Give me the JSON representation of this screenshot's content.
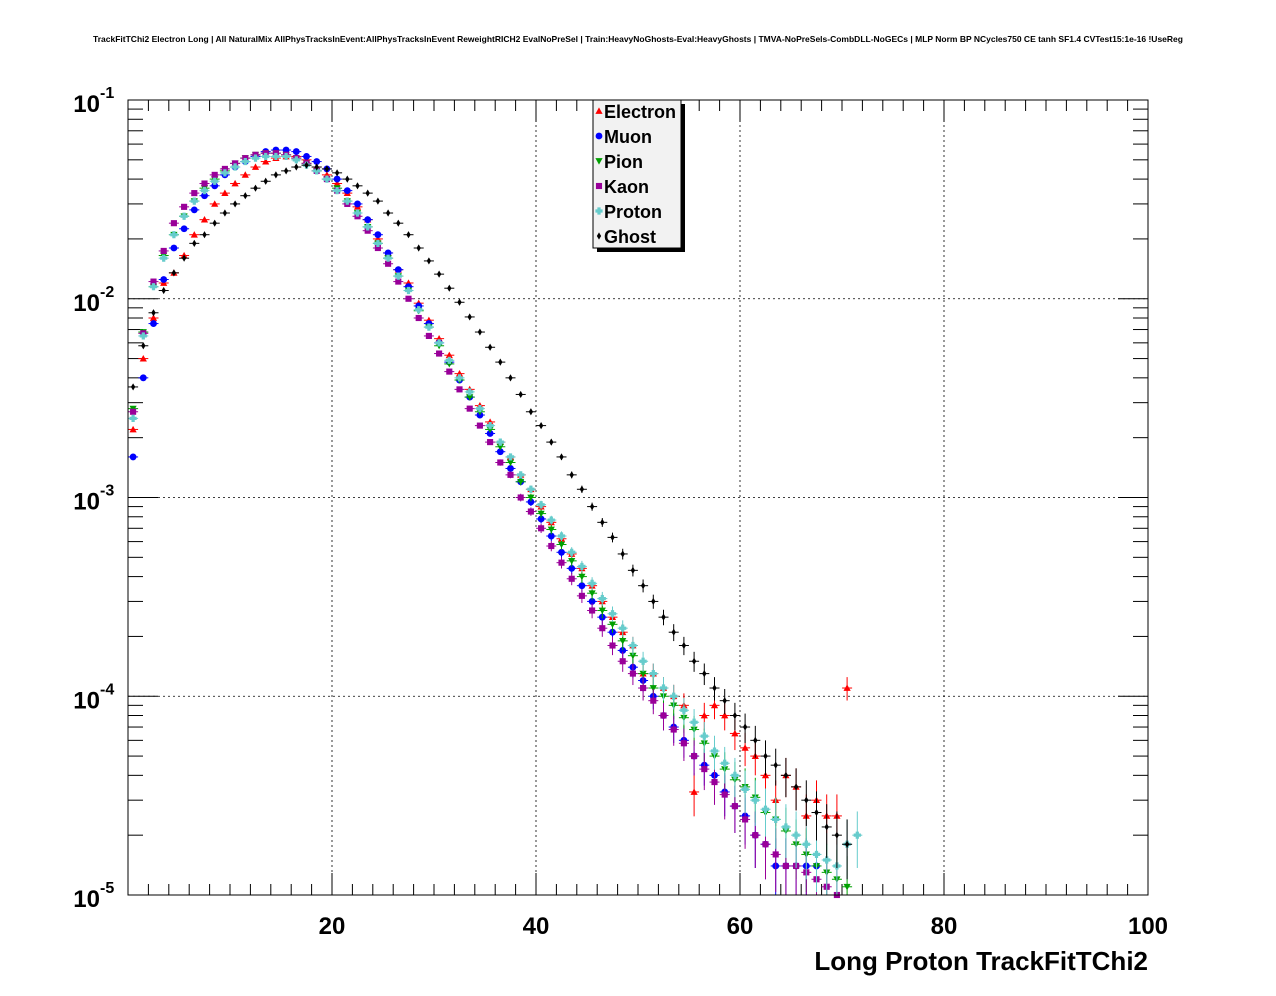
{
  "chart_data": {
    "type": "scatter",
    "title": "TrackFitTChi2 Electron Long | All NaturalMix AllPhysTracksInEvent:AllPhysTracksInEvent ReweightRICH2 EvalNoPreSel | Train:HeavyNoGhosts-Eval:HeavyGhosts | TMVA-NoPreSels-CombDLL-NoGECs | MLP Norm BP NCycles750 CE tanh SF1.4 CVTest15:1e-16 !UseReg",
    "xlabel": "Long Proton TrackFitTChi2",
    "ylabel": "",
    "xlim": [
      0,
      100
    ],
    "ylim": [
      1e-05,
      0.1
    ],
    "yscale": "log",
    "grid": true,
    "legend_position": "top-center",
    "x_ticks": [
      "20",
      "40",
      "60",
      "80",
      "100"
    ],
    "y_ticks": [
      {
        "base": "10",
        "exp": "-1"
      },
      {
        "base": "10",
        "exp": "-2"
      },
      {
        "base": "10",
        "exp": "-3"
      },
      {
        "base": "10",
        "exp": "-4"
      },
      {
        "base": "10",
        "exp": "-5"
      }
    ],
    "series": [
      {
        "name": "Electron",
        "color": "#ff0000",
        "marker": "triangle-up",
        "x": [
          0.5,
          1.5,
          2.5,
          3.5,
          4.5,
          5.5,
          6.5,
          7.5,
          8.5,
          9.5,
          10.5,
          11.5,
          12.5,
          13.5,
          14.5,
          15.5,
          16.5,
          17.5,
          18.5,
          19.5,
          20.5,
          21.5,
          22.5,
          23.5,
          24.5,
          25.5,
          26.5,
          27.5,
          28.5,
          29.5,
          30.5,
          31.5,
          32.5,
          33.5,
          34.5,
          35.5,
          36.5,
          37.5,
          38.5,
          39.5,
          40.5,
          41.5,
          42.5,
          43.5,
          44.5,
          45.5,
          46.5,
          47.5,
          48.5,
          49.5,
          50.5,
          51.5,
          52.5,
          53.5,
          54.5,
          55.5,
          56.5,
          57.5,
          58.5,
          59.5,
          60.5,
          61.5,
          62.5,
          63.5,
          64.5,
          65.5,
          66.5,
          67.5,
          68.5,
          69.5,
          70.5
        ],
        "y": [
          0.0022,
          0.005,
          0.008,
          0.012,
          0.0135,
          0.0165,
          0.021,
          0.025,
          0.03,
          0.034,
          0.038,
          0.042,
          0.046,
          0.049,
          0.051,
          0.052,
          0.052,
          0.05,
          0.046,
          0.042,
          0.038,
          0.034,
          0.029,
          0.025,
          0.02,
          0.017,
          0.014,
          0.012,
          0.0095,
          0.0078,
          0.0063,
          0.0052,
          0.0042,
          0.0035,
          0.0029,
          0.0024,
          0.0019,
          0.0016,
          0.0013,
          0.0011,
          0.0009,
          0.00075,
          0.00062,
          0.00052,
          0.00044,
          0.00036,
          0.0003,
          0.00025,
          0.00021,
          0.00018,
          0.00013,
          0.00013,
          0.00011,
          0.0001,
          9e-05,
          3.3e-05,
          8e-05,
          9e-05,
          8e-05,
          6.5e-05,
          5.5e-05,
          5e-05,
          4e-05,
          3e-05,
          4e-05,
          3.5e-05,
          2.5e-05,
          3e-05,
          2.5e-05,
          2.5e-05,
          0.00011
        ]
      },
      {
        "name": "Muon",
        "color": "#0000ff",
        "marker": "circle",
        "x": [
          0.5,
          1.5,
          2.5,
          3.5,
          4.5,
          5.5,
          6.5,
          7.5,
          8.5,
          9.5,
          10.5,
          11.5,
          12.5,
          13.5,
          14.5,
          15.5,
          16.5,
          17.5,
          18.5,
          19.5,
          20.5,
          21.5,
          22.5,
          23.5,
          24.5,
          25.5,
          26.5,
          27.5,
          28.5,
          29.5,
          30.5,
          31.5,
          32.5,
          33.5,
          34.5,
          35.5,
          36.5,
          37.5,
          38.5,
          39.5,
          40.5,
          41.5,
          42.5,
          43.5,
          44.5,
          45.5,
          46.5,
          47.5,
          48.5,
          49.5,
          50.5,
          51.5,
          52.5,
          53.5,
          54.5,
          55.5,
          56.5,
          57.5,
          58.5,
          59.5,
          60.5,
          61.5,
          62.5,
          63.5,
          64.5,
          65.5,
          66.5,
          67.5
        ],
        "y": [
          0.0016,
          0.004,
          0.0075,
          0.0125,
          0.018,
          0.0225,
          0.028,
          0.033,
          0.037,
          0.042,
          0.046,
          0.049,
          0.052,
          0.055,
          0.056,
          0.056,
          0.055,
          0.052,
          0.049,
          0.045,
          0.04,
          0.035,
          0.03,
          0.025,
          0.021,
          0.017,
          0.014,
          0.0115,
          0.0092,
          0.0075,
          0.006,
          0.0048,
          0.0039,
          0.0032,
          0.0026,
          0.0021,
          0.0017,
          0.0014,
          0.0012,
          0.00095,
          0.00078,
          0.00064,
          0.00053,
          0.00044,
          0.00036,
          0.0003,
          0.00025,
          0.00021,
          0.00017,
          0.00014,
          0.00012,
          0.0001,
          8e-05,
          7e-05,
          6e-05,
          5e-05,
          4.5e-05,
          4e-05,
          3.3e-05,
          2.8e-05,
          2.5e-05,
          2e-05,
          1.8e-05,
          1.4e-05,
          1.4e-05,
          1.4e-05,
          1.4e-05,
          1.4e-05
        ]
      },
      {
        "name": "Pion",
        "color": "#00a000",
        "marker": "triangle-down",
        "x": [
          0.5,
          1.5,
          2.5,
          3.5,
          4.5,
          5.5,
          6.5,
          7.5,
          8.5,
          9.5,
          10.5,
          11.5,
          12.5,
          13.5,
          14.5,
          15.5,
          16.5,
          17.5,
          18.5,
          19.5,
          20.5,
          21.5,
          22.5,
          23.5,
          24.5,
          25.5,
          26.5,
          27.5,
          28.5,
          29.5,
          30.5,
          31.5,
          32.5,
          33.5,
          34.5,
          35.5,
          36.5,
          37.5,
          38.5,
          39.5,
          40.5,
          41.5,
          42.5,
          43.5,
          44.5,
          45.5,
          46.5,
          47.5,
          48.5,
          49.5,
          50.5,
          51.5,
          52.5,
          53.5,
          54.5,
          55.5,
          56.5,
          57.5,
          58.5,
          59.5,
          60.5,
          61.5,
          62.5,
          63.5,
          64.5,
          65.5,
          66.5,
          67.5,
          68.5,
          69.5,
          70.5
        ],
        "y": [
          0.0028,
          0.0068,
          0.0115,
          0.0165,
          0.021,
          0.026,
          0.031,
          0.036,
          0.04,
          0.044,
          0.048,
          0.051,
          0.053,
          0.054,
          0.054,
          0.053,
          0.051,
          0.048,
          0.044,
          0.04,
          0.036,
          0.031,
          0.027,
          0.023,
          0.019,
          0.016,
          0.013,
          0.011,
          0.0087,
          0.0072,
          0.0058,
          0.0047,
          0.0039,
          0.0032,
          0.0027,
          0.0022,
          0.0018,
          0.0015,
          0.0012,
          0.001,
          0.00083,
          0.00069,
          0.00058,
          0.00048,
          0.0004,
          0.00033,
          0.00027,
          0.00023,
          0.00019,
          0.00016,
          0.00013,
          0.00011,
          0.0001,
          9e-05,
          7.8e-05,
          6.8e-05,
          5.8e-05,
          5e-05,
          4.3e-05,
          3.8e-05,
          3.5e-05,
          3.1e-05,
          2.6e-05,
          2.4e-05,
          2.1e-05,
          1.8e-05,
          1.6e-05,
          1.4e-05,
          1.3e-05,
          1.2e-05,
          1.1e-05
        ]
      },
      {
        "name": "Kaon",
        "color": "#990099",
        "marker": "square",
        "x": [
          0.5,
          1.5,
          2.5,
          3.5,
          4.5,
          5.5,
          6.5,
          7.5,
          8.5,
          9.5,
          10.5,
          11.5,
          12.5,
          13.5,
          14.5,
          15.5,
          16.5,
          17.5,
          18.5,
          19.5,
          20.5,
          21.5,
          22.5,
          23.5,
          24.5,
          25.5,
          26.5,
          27.5,
          28.5,
          29.5,
          30.5,
          31.5,
          32.5,
          33.5,
          34.5,
          35.5,
          36.5,
          37.5,
          38.5,
          39.5,
          40.5,
          41.5,
          42.5,
          43.5,
          44.5,
          45.5,
          46.5,
          47.5,
          48.5,
          49.5,
          50.5,
          51.5,
          52.5,
          53.5,
          54.5,
          55.5,
          56.5,
          57.5,
          58.5,
          59.5,
          60.5,
          61.5,
          62.5,
          63.5,
          64.5,
          65.5,
          66.5,
          67.5,
          68.5,
          69.5
        ],
        "y": [
          0.0027,
          0.0067,
          0.0122,
          0.0174,
          0.024,
          0.029,
          0.034,
          0.038,
          0.042,
          0.045,
          0.048,
          0.051,
          0.053,
          0.054,
          0.054,
          0.053,
          0.051,
          0.048,
          0.044,
          0.04,
          0.035,
          0.03,
          0.026,
          0.022,
          0.018,
          0.015,
          0.0122,
          0.01,
          0.008,
          0.0065,
          0.0053,
          0.0043,
          0.0035,
          0.0028,
          0.0023,
          0.0019,
          0.0015,
          0.0013,
          0.001,
          0.00085,
          0.0007,
          0.00057,
          0.00047,
          0.00039,
          0.00032,
          0.00027,
          0.00022,
          0.00018,
          0.00015,
          0.00013,
          0.00011,
          9.5e-05,
          8e-05,
          6.8e-05,
          5.8e-05,
          5e-05,
          4.3e-05,
          3.7e-05,
          3.2e-05,
          2.8e-05,
          2.4e-05,
          2e-05,
          1.8e-05,
          1.6e-05,
          1.4e-05,
          1.4e-05,
          1.3e-05,
          1.2e-05,
          1.1e-05,
          1e-05
        ]
      },
      {
        "name": "Proton",
        "color": "#66cccc",
        "marker": "cross",
        "x": [
          0.5,
          1.5,
          2.5,
          3.5,
          4.5,
          5.5,
          6.5,
          7.5,
          8.5,
          9.5,
          10.5,
          11.5,
          12.5,
          13.5,
          14.5,
          15.5,
          16.5,
          17.5,
          18.5,
          19.5,
          20.5,
          21.5,
          22.5,
          23.5,
          24.5,
          25.5,
          26.5,
          27.5,
          28.5,
          29.5,
          30.5,
          31.5,
          32.5,
          33.5,
          34.5,
          35.5,
          36.5,
          37.5,
          38.5,
          39.5,
          40.5,
          41.5,
          42.5,
          43.5,
          44.5,
          45.5,
          46.5,
          47.5,
          48.5,
          49.5,
          50.5,
          51.5,
          52.5,
          53.5,
          54.5,
          55.5,
          56.5,
          57.5,
          58.5,
          59.5,
          60.5,
          61.5,
          62.5,
          63.5,
          64.5,
          65.5,
          66.5,
          67.5,
          68.5,
          69.5,
          70.5,
          71.5
        ],
        "y": [
          0.0025,
          0.0065,
          0.0115,
          0.016,
          0.021,
          0.026,
          0.031,
          0.035,
          0.039,
          0.043,
          0.046,
          0.049,
          0.051,
          0.052,
          0.052,
          0.052,
          0.05,
          0.047,
          0.044,
          0.04,
          0.035,
          0.031,
          0.027,
          0.023,
          0.019,
          0.016,
          0.013,
          0.011,
          0.0088,
          0.0072,
          0.006,
          0.0049,
          0.004,
          0.0034,
          0.0028,
          0.0023,
          0.0019,
          0.0016,
          0.0013,
          0.0011,
          0.00092,
          0.00077,
          0.00064,
          0.00053,
          0.00045,
          0.00037,
          0.00031,
          0.00026,
          0.00022,
          0.00018,
          0.00015,
          0.00013,
          0.00011,
          0.0001,
          8.5e-05,
          7.4e-05,
          6.3e-05,
          5.3e-05,
          4.6e-05,
          4e-05,
          3.4e-05,
          3e-05,
          2.7e-05,
          2.4e-05,
          2.2e-05,
          2e-05,
          1.8e-05,
          1.6e-05,
          1.5e-05,
          1.4e-05,
          1.8e-05,
          2e-05
        ]
      },
      {
        "name": "Ghost",
        "color": "#000000",
        "marker": "diamond",
        "x": [
          0.5,
          1.5,
          2.5,
          3.5,
          4.5,
          5.5,
          6.5,
          7.5,
          8.5,
          9.5,
          10.5,
          11.5,
          12.5,
          13.5,
          14.5,
          15.5,
          16.5,
          17.5,
          18.5,
          19.5,
          20.5,
          21.5,
          22.5,
          23.5,
          24.5,
          25.5,
          26.5,
          27.5,
          28.5,
          29.5,
          30.5,
          31.5,
          32.5,
          33.5,
          34.5,
          35.5,
          36.5,
          37.5,
          38.5,
          39.5,
          40.5,
          41.5,
          42.5,
          43.5,
          44.5,
          45.5,
          46.5,
          47.5,
          48.5,
          49.5,
          50.5,
          51.5,
          52.5,
          53.5,
          54.5,
          55.5,
          56.5,
          57.5,
          58.5,
          59.5,
          60.5,
          61.5,
          62.5,
          63.5,
          64.5,
          65.5,
          66.5,
          67.5,
          68.5,
          69.5,
          70.5
        ],
        "y": [
          0.0036,
          0.0058,
          0.0085,
          0.011,
          0.0135,
          0.016,
          0.019,
          0.021,
          0.024,
          0.027,
          0.03,
          0.033,
          0.036,
          0.039,
          0.042,
          0.044,
          0.046,
          0.047,
          0.046,
          0.045,
          0.043,
          0.04,
          0.037,
          0.034,
          0.031,
          0.027,
          0.024,
          0.021,
          0.018,
          0.0155,
          0.0133,
          0.0113,
          0.0096,
          0.0081,
          0.0068,
          0.0057,
          0.0048,
          0.004,
          0.0033,
          0.0027,
          0.0023,
          0.0019,
          0.0016,
          0.0013,
          0.0011,
          0.0009,
          0.00075,
          0.00063,
          0.00052,
          0.00043,
          0.00036,
          0.0003,
          0.00025,
          0.00021,
          0.00018,
          0.00015,
          0.00013,
          0.00011,
          9.5e-05,
          8e-05,
          7e-05,
          6e-05,
          5e-05,
          4.5e-05,
          4e-05,
          3.5e-05,
          3e-05,
          2.6e-05,
          2.2e-05,
          2e-05,
          1.8e-05
        ]
      }
    ]
  }
}
